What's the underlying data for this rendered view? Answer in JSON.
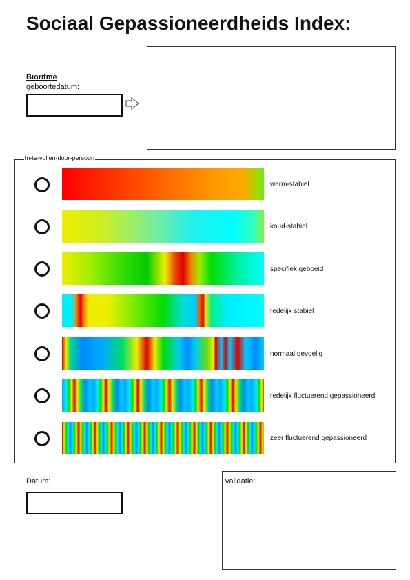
{
  "header": {
    "title": "Sociaal Gepassioneerdheids Index:"
  },
  "bioritme": {
    "heading": "Bioritme",
    "field_label": "geboortedatum:"
  },
  "section": {
    "legend": "In-te-vullen-door-persoon",
    "options": [
      {
        "label": "warm-stabiel"
      },
      {
        "label": "koud-stabiel"
      },
      {
        "label": "specifiek geboeid"
      },
      {
        "label": "redelijk stabiel"
      },
      {
        "label": "normaal gevoelig"
      },
      {
        "label": "redelijk fluctuerend gepassioneerd"
      },
      {
        "label": "zeer fluctuerend gepassioneerd"
      }
    ]
  },
  "footer": {
    "date_label": "Datum:",
    "validation_label": "Validatie:"
  }
}
